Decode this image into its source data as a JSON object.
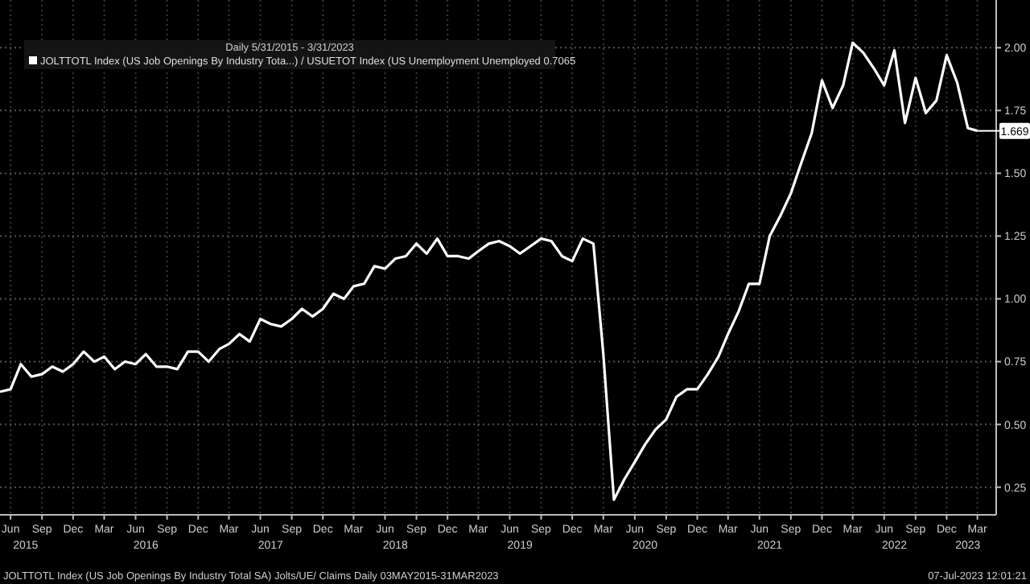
{
  "chart_data": {
    "type": "line",
    "subtitle": "Daily 5/31/2015 - 3/31/2023",
    "x": [
      "2015-05",
      "2015-06",
      "2015-07",
      "2015-08",
      "2015-09",
      "2015-10",
      "2015-11",
      "2015-12",
      "2016-01",
      "2016-02",
      "2016-03",
      "2016-04",
      "2016-05",
      "2016-06",
      "2016-07",
      "2016-08",
      "2016-09",
      "2016-10",
      "2016-11",
      "2016-12",
      "2017-01",
      "2017-02",
      "2017-03",
      "2017-04",
      "2017-05",
      "2017-06",
      "2017-07",
      "2017-08",
      "2017-09",
      "2017-10",
      "2017-11",
      "2017-12",
      "2018-01",
      "2018-02",
      "2018-03",
      "2018-04",
      "2018-05",
      "2018-06",
      "2018-07",
      "2018-08",
      "2018-09",
      "2018-10",
      "2018-11",
      "2018-12",
      "2019-01",
      "2019-02",
      "2019-03",
      "2019-04",
      "2019-05",
      "2019-06",
      "2019-07",
      "2019-08",
      "2019-09",
      "2019-10",
      "2019-11",
      "2019-12",
      "2020-01",
      "2020-02",
      "2020-03",
      "2020-04",
      "2020-05",
      "2020-06",
      "2020-07",
      "2020-08",
      "2020-09",
      "2020-10",
      "2020-11",
      "2020-12",
      "2021-01",
      "2021-02",
      "2021-03",
      "2021-04",
      "2021-05",
      "2021-06",
      "2021-07",
      "2021-08",
      "2021-09",
      "2021-10",
      "2021-11",
      "2021-12",
      "2022-01",
      "2022-02",
      "2022-03",
      "2022-04",
      "2022-05",
      "2022-06",
      "2022-07",
      "2022-08",
      "2022-09",
      "2022-10",
      "2022-11",
      "2022-12",
      "2023-01",
      "2023-02",
      "2023-03"
    ],
    "series": [
      {
        "name": "JOLTTOTL Index (US Job Openings By Industry Tota...) / USUETOT Index (US Unemployment Unemployed 0.7065",
        "color": "#ffffff",
        "values": [
          0.63,
          0.64,
          0.74,
          0.69,
          0.7,
          0.73,
          0.71,
          0.74,
          0.79,
          0.75,
          0.77,
          0.72,
          0.75,
          0.74,
          0.78,
          0.73,
          0.73,
          0.72,
          0.79,
          0.79,
          0.75,
          0.8,
          0.82,
          0.86,
          0.83,
          0.92,
          0.9,
          0.89,
          0.92,
          0.96,
          0.93,
          0.96,
          1.02,
          1.0,
          1.05,
          1.06,
          1.13,
          1.12,
          1.16,
          1.17,
          1.22,
          1.18,
          1.24,
          1.17,
          1.17,
          1.16,
          1.19,
          1.22,
          1.23,
          1.21,
          1.18,
          1.21,
          1.24,
          1.23,
          1.17,
          1.15,
          1.24,
          1.22,
          0.78,
          0.2,
          0.28,
          0.35,
          0.42,
          0.48,
          0.52,
          0.61,
          0.64,
          0.64,
          0.7,
          0.77,
          0.86,
          0.95,
          1.06,
          1.06,
          1.25,
          1.33,
          1.42,
          1.54,
          1.66,
          1.87,
          1.76,
          1.85,
          2.02,
          1.98,
          1.92,
          1.85,
          1.99,
          1.7,
          1.88,
          1.74,
          1.79,
          1.97,
          1.86,
          1.68,
          1.669
        ]
      }
    ],
    "xlim": [
      "2015-05",
      "2023-04-25"
    ],
    "xticks": [
      {
        "value": "2015-06",
        "label": "Jun"
      },
      {
        "value": "2015-09",
        "label": "Sep"
      },
      {
        "value": "2015-12",
        "label": "Dec"
      },
      {
        "value": "2016-03",
        "label": "Mar"
      },
      {
        "value": "2016-06",
        "label": "Jun"
      },
      {
        "value": "2016-09",
        "label": "Sep"
      },
      {
        "value": "2016-12",
        "label": "Dec"
      },
      {
        "value": "2017-03",
        "label": "Mar"
      },
      {
        "value": "2017-06",
        "label": "Jun"
      },
      {
        "value": "2017-09",
        "label": "Sep"
      },
      {
        "value": "2017-12",
        "label": "Dec"
      },
      {
        "value": "2018-03",
        "label": "Mar"
      },
      {
        "value": "2018-06",
        "label": "Jun"
      },
      {
        "value": "2018-09",
        "label": "Sep"
      },
      {
        "value": "2018-12",
        "label": "Dec"
      },
      {
        "value": "2019-03",
        "label": "Mar"
      },
      {
        "value": "2019-06",
        "label": "Jun"
      },
      {
        "value": "2019-09",
        "label": "Sep"
      },
      {
        "value": "2019-12",
        "label": "Dec"
      },
      {
        "value": "2020-03",
        "label": "Mar"
      },
      {
        "value": "2020-06",
        "label": "Jun"
      },
      {
        "value": "2020-09",
        "label": "Sep"
      },
      {
        "value": "2020-12",
        "label": "Dec"
      },
      {
        "value": "2021-03",
        "label": "Mar"
      },
      {
        "value": "2021-06",
        "label": "Jun"
      },
      {
        "value": "2021-09",
        "label": "Sep"
      },
      {
        "value": "2021-12",
        "label": "Dec"
      },
      {
        "value": "2022-03",
        "label": "Mar"
      },
      {
        "value": "2022-06",
        "label": "Jun"
      },
      {
        "value": "2022-09",
        "label": "Sep"
      },
      {
        "value": "2022-12",
        "label": "Dec"
      },
      {
        "value": "2023-03",
        "label": "Mar"
      }
    ],
    "x2lim": [
      "2015-05",
      "2023-04-25"
    ],
    "x2ticks": [
      {
        "value": "2015-07-15",
        "label": "2015"
      },
      {
        "value": "2016-07",
        "label": "2016"
      },
      {
        "value": "2017-07",
        "label": "2017"
      },
      {
        "value": "2018-07",
        "label": "2018"
      },
      {
        "value": "2019-07",
        "label": "2019"
      },
      {
        "value": "2020-07",
        "label": "2020"
      },
      {
        "value": "2021-07",
        "label": "2021"
      },
      {
        "value": "2022-07",
        "label": "2022"
      },
      {
        "value": "2023-02",
        "label": "2023"
      }
    ],
    "ylim": [
      0.14,
      2.19
    ],
    "yticks": [
      {
        "value": 0.25,
        "label": "0.25"
      },
      {
        "value": 0.5,
        "label": "0.50"
      },
      {
        "value": 0.75,
        "label": "0.75"
      },
      {
        "value": 1,
        "label": "1.00"
      },
      {
        "value": 1.25,
        "label": "1.25"
      },
      {
        "value": 1.5,
        "label": "1.50"
      },
      {
        "value": 1.75,
        "label": "1.75"
      },
      {
        "value": 2,
        "label": "2.00"
      }
    ],
    "grid": true,
    "legend": "top left",
    "annotations": [
      {
        "text": "1.669",
        "x": "2023-03",
        "y": 1.669
      },
      "JOLTTOTL Index (US Job Openings By Industry Total SA) Jolts/UE/ Claims  Daily 03MAY2015-31MAR2023",
      "07-Jul-2023 12:01:21"
    ]
  }
}
